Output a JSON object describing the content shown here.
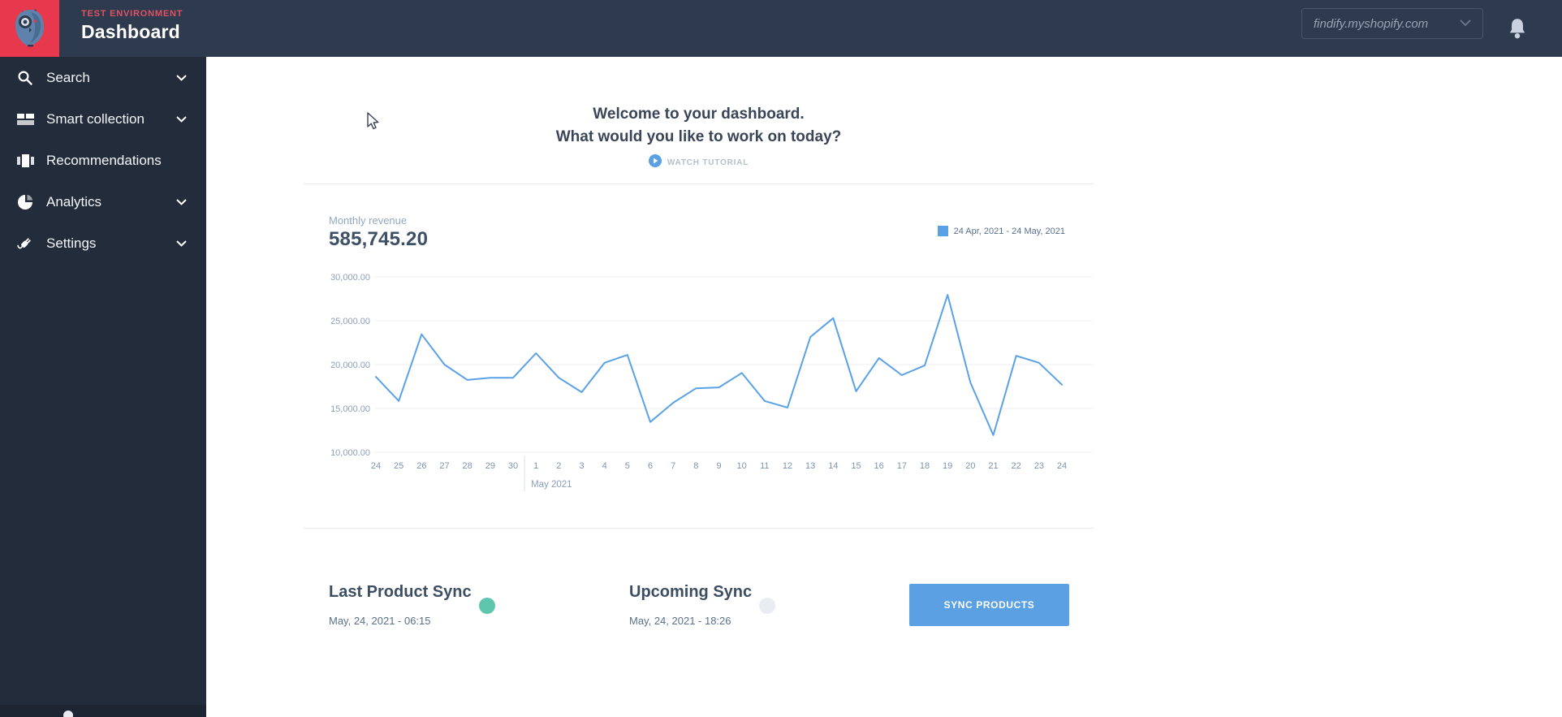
{
  "header": {
    "environment_label": "TEST ENVIRONMENT",
    "page_title": "Dashboard",
    "store_selector_value": "findify.myshopify.com"
  },
  "sidebar": {
    "items": [
      {
        "label": "Search",
        "icon": "search",
        "expandable": true
      },
      {
        "label": "Smart collection",
        "icon": "smart-collection",
        "expandable": true
      },
      {
        "label": "Recommendations",
        "icon": "recommendations",
        "expandable": false
      },
      {
        "label": "Analytics",
        "icon": "analytics",
        "expandable": true
      },
      {
        "label": "Settings",
        "icon": "settings",
        "expandable": true
      }
    ]
  },
  "welcome": {
    "heading_line1": "Welcome to your dashboard.",
    "heading_line2": "What would you like to work on today?",
    "tutorial_link": "WATCH TUTORIAL"
  },
  "revenue": {
    "label": "Monthly revenue",
    "total": "585,745.20"
  },
  "chart_data": {
    "type": "line",
    "title": "Monthly revenue",
    "legend": "24 Apr, 2021 - 24 May, 2021",
    "legend_position": "top-right",
    "series_color": "#5AA2E5",
    "grid": "horizontal",
    "x_categories": [
      "24",
      "25",
      "26",
      "27",
      "28",
      "29",
      "30",
      "1",
      "2",
      "3",
      "4",
      "5",
      "6",
      "7",
      "8",
      "9",
      "10",
      "11",
      "12",
      "13",
      "14",
      "15",
      "16",
      "17",
      "18",
      "19",
      "20",
      "21",
      "22",
      "23",
      "24"
    ],
    "month_divider_after_index": 6,
    "month_label": "May 2021",
    "values": [
      18600,
      15850,
      23450,
      20000,
      18250,
      18500,
      18500,
      21300,
      18500,
      16850,
      20200,
      21100,
      13450,
      15650,
      17300,
      17400,
      19050,
      15850,
      15100,
      23150,
      25300,
      16950,
      20750,
      18800,
      19900,
      27950,
      17950,
      11950,
      21000,
      20200,
      17700
    ],
    "ylim": [
      10000,
      30000
    ],
    "ytick_step": 5000,
    "ytick_labels_top_to_bottom": [
      "30,000.00",
      "25,000.00",
      "20,000.00",
      "15,000.00",
      "10,000.00"
    ]
  },
  "sync": {
    "last": {
      "title": "Last Product Sync",
      "timestamp": "May, 24, 2021 - 06:15",
      "status_color": "#5FC6AE"
    },
    "upcoming": {
      "title": "Upcoming Sync",
      "timestamp": "May, 24, 2021 - 18:26",
      "status_color": "#E9EDF2"
    },
    "sync_button_label": "SYNC PRODUCTS"
  },
  "colors": {
    "accent_blue": "#5AA0E2",
    "brand_red": "#E8384E",
    "header_bg": "#2E3A4D",
    "sidebar_bg": "#232C3B",
    "sidebar_footer_bg": "#1E2532",
    "status_ok": "#5FC6AE",
    "status_pending": "#E9EDF2"
  }
}
